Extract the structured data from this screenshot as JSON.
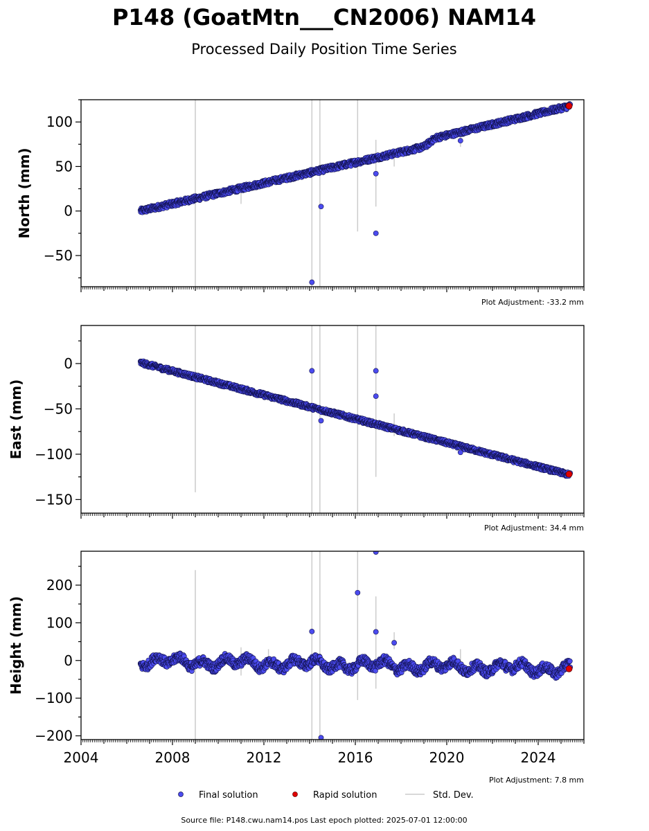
{
  "title": "P148 (GoatMtn___CN2006) NAM14",
  "subtitle": "Processed Daily Position Time Series",
  "footer": "Source file: P148.cwu.nam14.pos  Last epoch plotted: 2025-07-01 12:00:00",
  "legend": {
    "final": "Final solution",
    "rapid": "Rapid solution",
    "std": "Std. Dev."
  },
  "colors": {
    "final_fill": "#4b4bef",
    "final_edge": "#10104a",
    "rapid_fill": "#e00000",
    "std": "#cccccc",
    "axis": "#000000"
  },
  "chart_data": [
    {
      "type": "scatter",
      "ylabel": "North (mm)",
      "adjustment": "Plot Adjustment: -33.2 mm",
      "xlim": [
        2004.0,
        2026.0
      ],
      "ylim": [
        -85,
        125
      ],
      "yticks": [
        -50,
        0,
        50,
        100
      ],
      "ytick_labels": [
        "−50",
        "0",
        "50",
        "100"
      ],
      "trend": [
        [
          2006.6,
          0
        ],
        [
          2019.0,
          72
        ],
        [
          2019.5,
          82
        ],
        [
          2025.4,
          118
        ]
      ],
      "outliers": [
        [
          2014.1,
          -80,
          8
        ],
        [
          2014.5,
          5,
          3
        ],
        [
          2016.9,
          -25,
          6
        ],
        [
          2016.9,
          42,
          4
        ],
        [
          2020.6,
          79,
          3
        ]
      ],
      "std_bars": [
        [
          2009.0,
          -85,
          125
        ],
        [
          2014.1,
          -85,
          125
        ],
        [
          2014.45,
          -85,
          125
        ],
        [
          2016.1,
          -23,
          125
        ],
        [
          2016.9,
          5,
          80
        ],
        [
          2017.7,
          50,
          66
        ],
        [
          2011.0,
          8,
          30
        ],
        [
          2020.6,
          72,
          86
        ]
      ],
      "rapid": [
        [
          2025.35,
          118
        ]
      ],
      "noise": 3
    },
    {
      "type": "scatter",
      "ylabel": "East (mm)",
      "adjustment": "Plot Adjustment: 34.4 mm",
      "xlim": [
        2004.0,
        2026.0
      ],
      "ylim": [
        -165,
        42
      ],
      "yticks": [
        -150,
        -100,
        -50,
        0
      ],
      "ytick_labels": [
        "−150",
        "−100",
        "−50",
        "0"
      ],
      "trend": [
        [
          2006.6,
          1
        ],
        [
          2025.4,
          -123
        ]
      ],
      "outliers": [
        [
          2014.1,
          -8,
          8
        ],
        [
          2014.5,
          -63,
          3
        ],
        [
          2016.9,
          -8,
          6
        ],
        [
          2016.9,
          -36,
          4
        ],
        [
          2020.6,
          -98,
          3
        ]
      ],
      "std_bars": [
        [
          2009.0,
          -142,
          42
        ],
        [
          2014.1,
          -165,
          42
        ],
        [
          2014.45,
          -165,
          42
        ],
        [
          2016.1,
          -165,
          42
        ],
        [
          2016.9,
          -125,
          42
        ],
        [
          2017.7,
          -80,
          -55
        ]
      ],
      "rapid": [
        [
          2025.35,
          -122
        ]
      ],
      "noise": 2.5
    },
    {
      "type": "scatter",
      "ylabel": "Height (mm)",
      "adjustment": "Plot Adjustment: 7.8 mm",
      "xlim": [
        2004.0,
        2026.0
      ],
      "ylim": [
        -210,
        290
      ],
      "yticks": [
        -200,
        -100,
        0,
        100,
        200
      ],
      "ytick_labels": [
        "−200",
        "−100",
        "0",
        "100",
        "200"
      ],
      "xticks": [
        2004,
        2008,
        2012,
        2016,
        2020,
        2024
      ],
      "xtick_labels": [
        "2004",
        "2008",
        "2012",
        "2016",
        "2020",
        "2024"
      ],
      "trend": [
        [
          2006.6,
          -2
        ],
        [
          2025.4,
          -22
        ]
      ],
      "outliers": [
        [
          2014.1,
          77,
          8
        ],
        [
          2014.5,
          -205,
          3
        ],
        [
          2016.1,
          180,
          3
        ],
        [
          2016.9,
          288,
          6
        ],
        [
          2016.9,
          76,
          4
        ],
        [
          2017.7,
          47,
          4
        ]
      ],
      "std_bars": [
        [
          2009.0,
          -210,
          240
        ],
        [
          2014.1,
          -210,
          290
        ],
        [
          2014.45,
          -210,
          290
        ],
        [
          2016.1,
          -105,
          290
        ],
        [
          2016.9,
          -75,
          170
        ],
        [
          2017.7,
          30,
          75
        ],
        [
          2011.0,
          -40,
          35
        ],
        [
          2012.2,
          -25,
          30
        ],
        [
          2020.6,
          -25,
          30
        ]
      ],
      "rapid": [
        [
          2025.35,
          -22
        ]
      ],
      "noise": 12,
      "wiggle": true
    }
  ]
}
